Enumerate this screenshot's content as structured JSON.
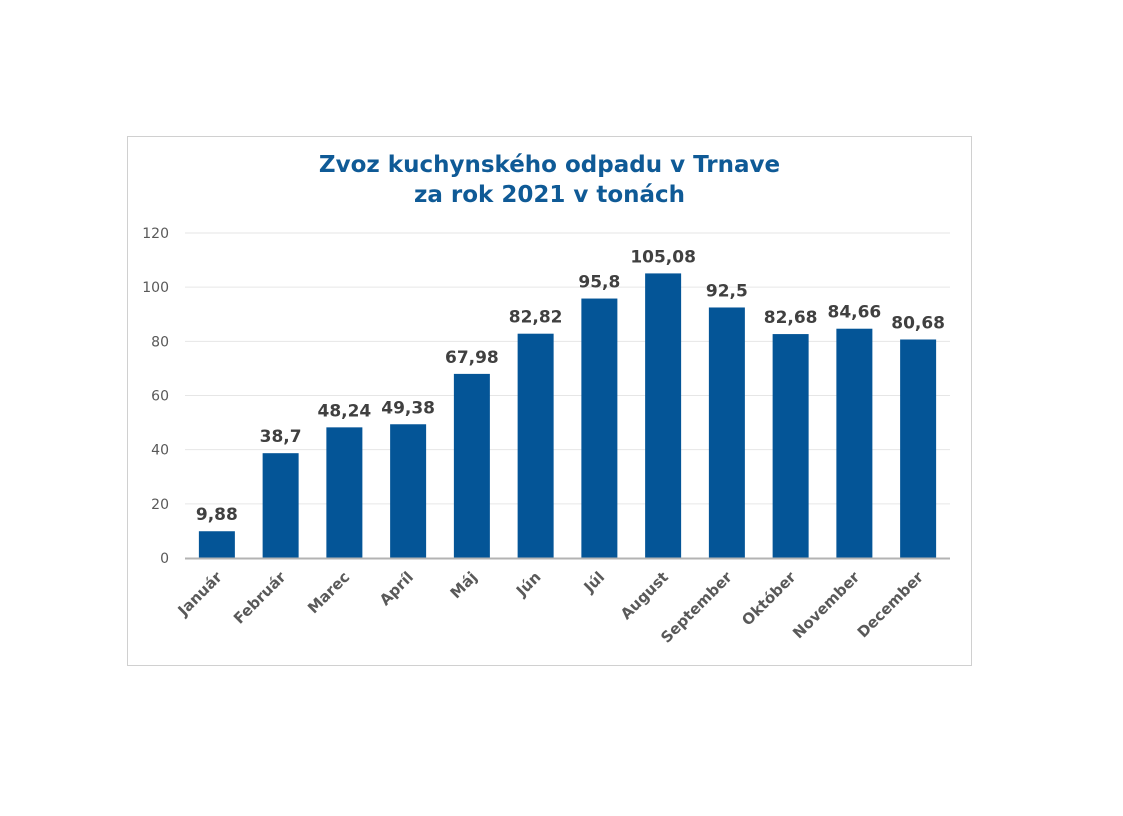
{
  "chart_data": {
    "type": "bar",
    "title_line1": "Zvoz kuchynského odpadu v Trnave",
    "title_line2": "za rok 2021 v tonách",
    "categories": [
      "Január",
      "Február",
      "Marec",
      "Apríl",
      "Máj",
      "Jún",
      "Júl",
      "August",
      "September",
      "Október",
      "November",
      "December"
    ],
    "values": [
      9.88,
      38.7,
      48.24,
      49.38,
      67.98,
      82.82,
      95.8,
      105.08,
      92.5,
      82.68,
      84.66,
      80.68
    ],
    "data_labels": [
      "9,88",
      "38,7",
      "48,24",
      "49,38",
      "67,98",
      "82,82",
      "95,8",
      "105,08",
      "92,5",
      "82,68",
      "84,66",
      "80,68"
    ],
    "y_ticks": [
      "0",
      "20",
      "40",
      "60",
      "80",
      "100",
      "120"
    ],
    "ylim": [
      0,
      120
    ],
    "grid": true,
    "legend": "none",
    "colors": {
      "bar": "#045597",
      "title": "#0f5a96",
      "data_label": "#404040",
      "axis_text": "#595959",
      "gridline": "#e6e6e6",
      "axis_line": "#b3b3b3"
    }
  }
}
